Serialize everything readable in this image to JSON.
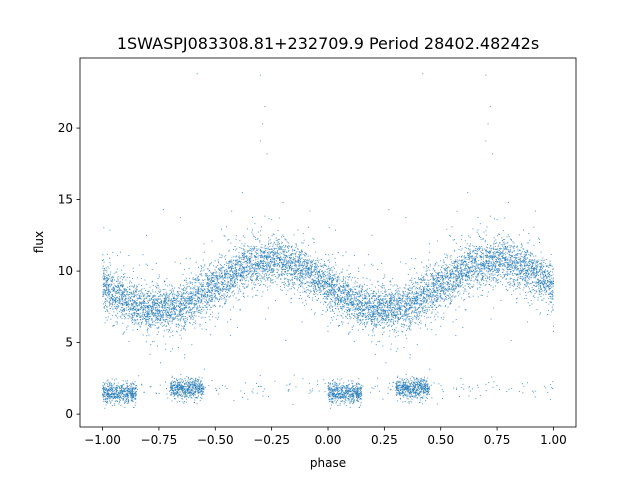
{
  "chart_data": {
    "type": "scatter",
    "title": "1SWASPJ083308.81+232709.9 Period 28402.48242s",
    "xlabel": "phase",
    "ylabel": "flux",
    "xlim": [
      -1.1,
      1.1
    ],
    "ylim": [
      -0.9,
      24.9
    ],
    "xticks": [
      -1.0,
      -0.75,
      -0.5,
      -0.25,
      0.0,
      0.25,
      0.5,
      0.75,
      1.0
    ],
    "xtick_labels": [
      "−1.00",
      "−0.75",
      "−0.50",
      "−0.25",
      "0.00",
      "0.25",
      "0.50",
      "0.75",
      "1.00"
    ],
    "yticks": [
      0,
      5,
      10,
      15,
      20
    ],
    "ytick_labels": [
      "0",
      "5",
      "10",
      "15",
      "20"
    ],
    "grid": false,
    "color": "#1f77b4",
    "model": {
      "main_band": {
        "mean": 9.0,
        "amplitude": 1.7,
        "peak_phase": 0.75,
        "period": 1.0,
        "scatter": 0.8
      },
      "low_band": {
        "mean": 1.8,
        "scatter": 0.35,
        "phase_ranges": [
          [
            -1.0,
            -0.85
          ],
          [
            -0.7,
            -0.55
          ],
          [
            0.0,
            0.15
          ],
          [
            0.3,
            0.45
          ]
        ]
      }
    },
    "series": [
      {
        "values": [
          [
            -0.3,
            23.7
          ],
          [
            0.7,
            23.7
          ],
          [
            -0.58,
            23.8
          ],
          [
            0.42,
            23.8
          ],
          [
            -0.28,
            21.5
          ],
          [
            0.72,
            21.5
          ],
          [
            -0.29,
            20.3
          ],
          [
            0.71,
            20.3
          ],
          [
            -0.3,
            19.1
          ],
          [
            0.7,
            19.1
          ],
          [
            -0.27,
            18.2
          ],
          [
            0.73,
            18.2
          ],
          [
            -0.38,
            15.5
          ],
          [
            0.62,
            15.5
          ],
          [
            -0.2,
            14.8
          ],
          [
            0.8,
            14.8
          ],
          [
            -0.73,
            14.3
          ],
          [
            0.27,
            14.3
          ],
          [
            -0.08,
            14.2
          ],
          [
            0.92,
            14.2
          ],
          [
            -0.25,
            13.6
          ],
          [
            0.75,
            13.6
          ],
          [
            -0.45,
            13.1
          ],
          [
            0.55,
            13.1
          ]
        ]
      }
    ]
  }
}
